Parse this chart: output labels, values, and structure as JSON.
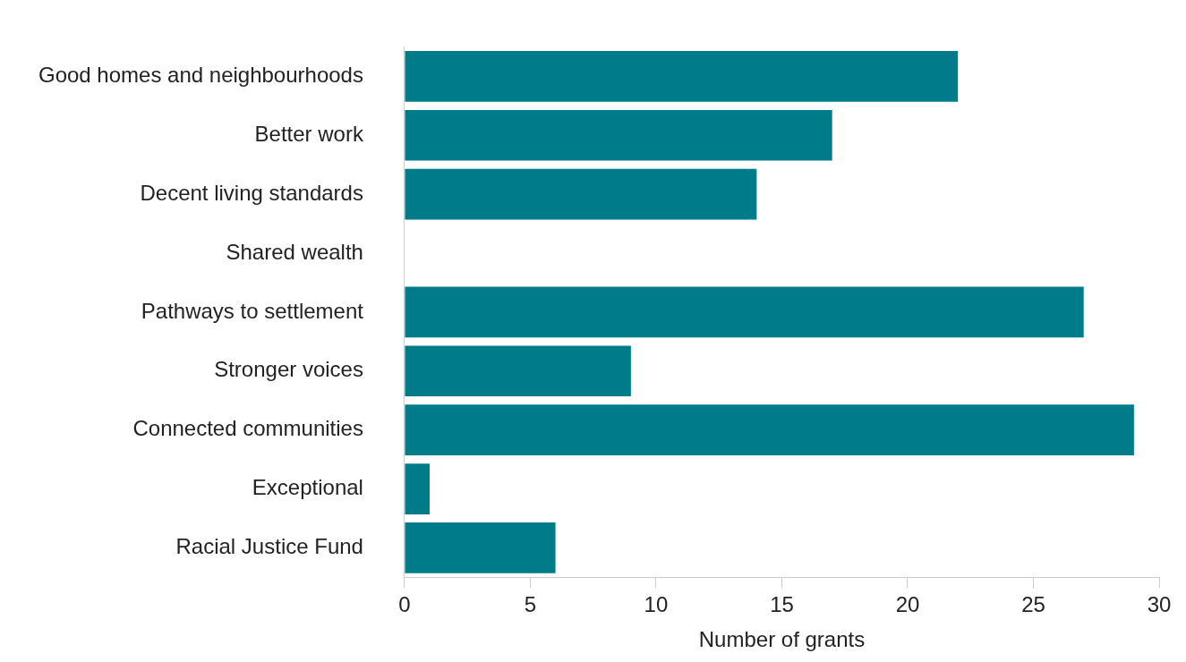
{
  "chart_data": {
    "type": "bar",
    "orientation": "horizontal",
    "xlabel": "Number of grants",
    "categories": [
      "Good homes and neighbourhoods",
      "Better work",
      "Decent living standards",
      "Shared wealth",
      "Pathways to settlement",
      "Stronger voices",
      "Connected communities",
      "Exceptional",
      "Racial Justice Fund"
    ],
    "values": [
      22,
      17,
      14,
      0,
      27,
      9,
      29,
      1,
      6
    ],
    "color": "#007b8a",
    "xlim": [
      0,
      30
    ],
    "xticks": [
      0,
      5,
      10,
      15,
      20,
      25,
      30
    ],
    "grid": false,
    "legend": false
  }
}
